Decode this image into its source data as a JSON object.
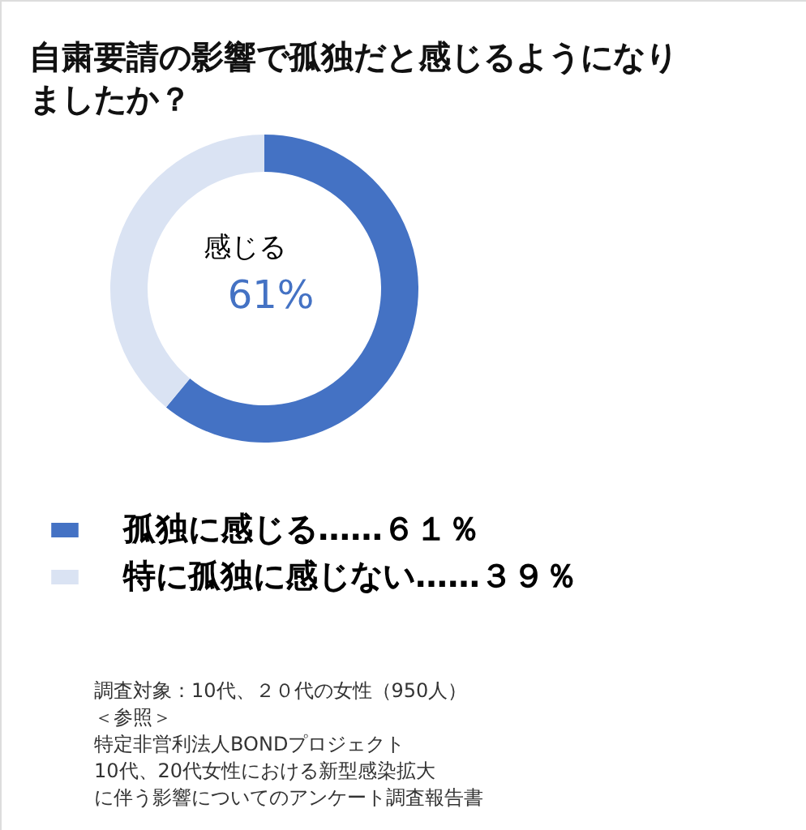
{
  "chart_data": {
    "type": "donut",
    "title": "自粛要請の影響で孤独だと感じるようになりましたか？",
    "categories": [
      "孤独に感じる……６１％",
      "特に孤独に感じない……３９％"
    ],
    "values": [
      61,
      39
    ],
    "colors": [
      "#4472c4",
      "#dae3f3"
    ],
    "legend": "bottom",
    "annotations": [
      "感じる",
      "61%",
      "調査対象：10代、２０代の女性（950人）",
      "＜参照＞",
      "特定非営利法人BONDプロジェクト",
      "10代、20代女性における新型感染拡大",
      "に伴う影響についてのアンケート調査報告書"
    ]
  }
}
